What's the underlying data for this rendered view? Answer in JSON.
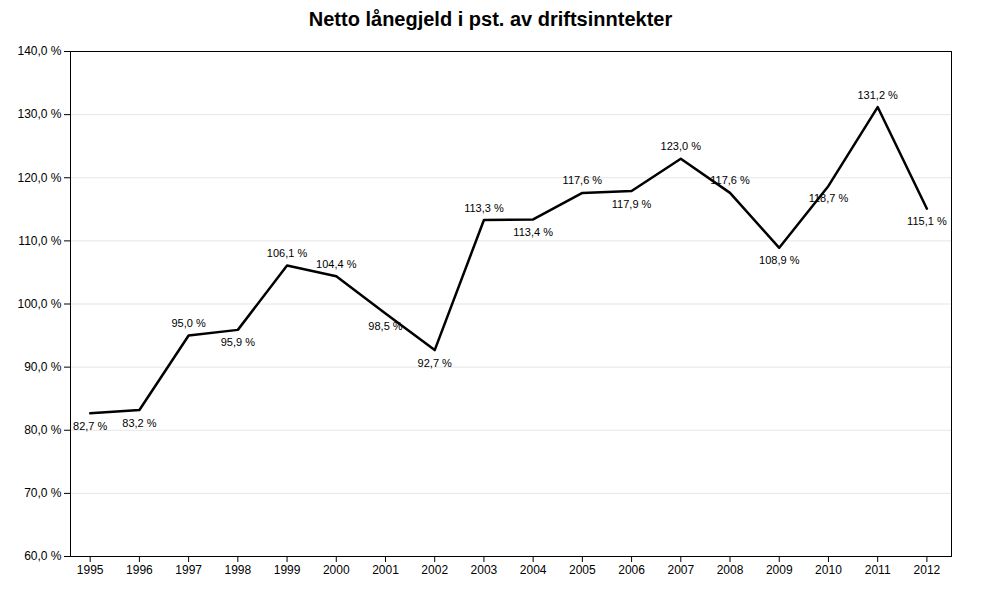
{
  "chart_data": {
    "type": "line",
    "title": "Netto lånegjeld i pst. av driftsinntekter",
    "x": [
      1995,
      1996,
      1997,
      1998,
      1999,
      2000,
      2001,
      2002,
      2003,
      2004,
      2005,
      2006,
      2007,
      2008,
      2009,
      2010,
      2011,
      2012
    ],
    "values": [
      82.7,
      83.2,
      95.0,
      95.9,
      106.1,
      104.4,
      98.5,
      92.7,
      113.3,
      113.4,
      117.6,
      117.9,
      123.0,
      117.6,
      108.9,
      118.7,
      131.2,
      115.1
    ],
    "value_labels": [
      "82,7 %",
      "83,2 %",
      "95,0 %",
      "95,9 %",
      "106,1 %",
      "104,4 %",
      "98,5 %",
      "92,7 %",
      "113,3 %",
      "113,4 %",
      "117,6 %",
      "117,9 %",
      "123,0 %",
      "117,6 %",
      "108,9 %",
      "118,7 %",
      "131,2 %",
      "115,1 %"
    ],
    "data_labels": true,
    "xlim": [
      1994.6,
      2012.5
    ],
    "xticks": [
      1995,
      1996,
      1997,
      1998,
      1999,
      2000,
      2001,
      2002,
      2003,
      2004,
      2005,
      2006,
      2007,
      2008,
      2009,
      2010,
      2011,
      2012
    ],
    "ylim": [
      60.0,
      140.0
    ],
    "yticks": [
      {
        "value": 60.0,
        "label": "60,0 %"
      },
      {
        "value": 70.0,
        "label": "70,0 %"
      },
      {
        "value": 80.0,
        "label": "80,0 %"
      },
      {
        "value": 90.0,
        "label": "90,0 %"
      },
      {
        "value": 100.0,
        "label": "100,0 %"
      },
      {
        "value": 110.0,
        "label": "110,0 %"
      },
      {
        "value": 120.0,
        "label": "120,0 %"
      },
      {
        "value": 130.0,
        "label": "130,0 %"
      },
      {
        "value": 140.0,
        "label": "140,0 %"
      }
    ],
    "grid": true
  }
}
